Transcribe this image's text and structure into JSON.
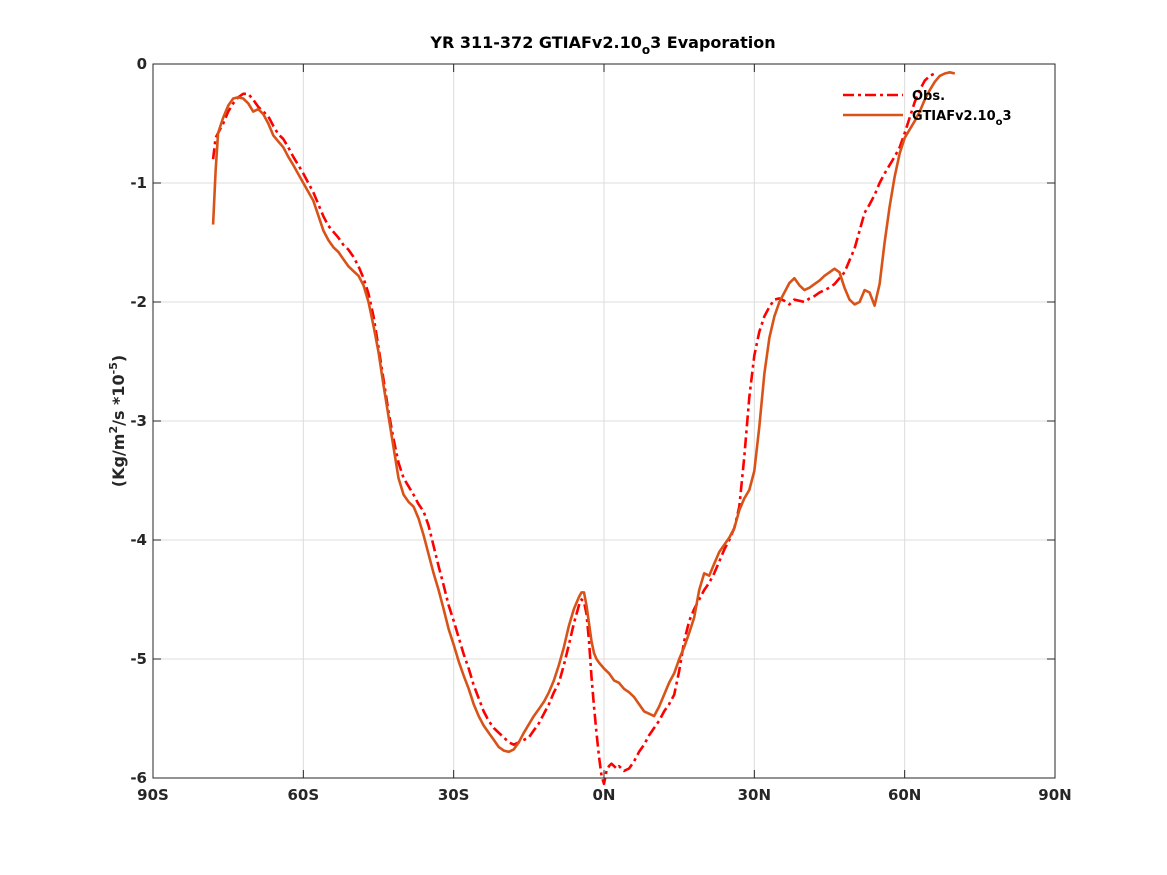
{
  "chart_data": {
    "type": "line",
    "title": {
      "main": "YR 311-372 GTIAFv2.10",
      "sub": "o",
      "tail": "3 Evaporation"
    },
    "ylabel": {
      "pre": "(Kg/m",
      "sup1": "2",
      "mid": "/s *10",
      "sup2": "-5",
      "post": ")"
    },
    "xlabel": "",
    "xlim": [
      -90,
      90
    ],
    "ylim": [
      -6,
      0
    ],
    "grid": true,
    "legend_position": "top-right",
    "x_ticks": [
      {
        "value": -90,
        "label": "90S"
      },
      {
        "value": -60,
        "label": "60S"
      },
      {
        "value": -30,
        "label": "30S"
      },
      {
        "value": 0,
        "label": "0N"
      },
      {
        "value": 30,
        "label": "30N"
      },
      {
        "value": 60,
        "label": "60N"
      },
      {
        "value": 90,
        "label": "90N"
      }
    ],
    "y_ticks": [
      {
        "value": 0,
        "label": "0"
      },
      {
        "value": -1,
        "label": "-1"
      },
      {
        "value": -2,
        "label": "-2"
      },
      {
        "value": -3,
        "label": "-3"
      },
      {
        "value": -4,
        "label": "-4"
      },
      {
        "value": -5,
        "label": "-5"
      },
      {
        "value": -6,
        "label": "-6"
      }
    ],
    "series": [
      {
        "name": "Obs.",
        "legend_parts": {
          "main": "Obs.",
          "sub": "",
          "tail": ""
        },
        "color": "#ff0000",
        "style": "dashdot",
        "points": [
          [
            -78,
            -0.8
          ],
          [
            -77.5,
            -0.62
          ],
          [
            -76,
            -0.5
          ],
          [
            -75,
            -0.4
          ],
          [
            -74,
            -0.33
          ],
          [
            -73,
            -0.28
          ],
          [
            -72,
            -0.25
          ],
          [
            -71,
            -0.25
          ],
          [
            -70,
            -0.3
          ],
          [
            -69,
            -0.36
          ],
          [
            -68,
            -0.4
          ],
          [
            -67,
            -0.44
          ],
          [
            -66,
            -0.52
          ],
          [
            -65,
            -0.59
          ],
          [
            -64,
            -0.63
          ],
          [
            -63,
            -0.7
          ],
          [
            -62,
            -0.78
          ],
          [
            -60,
            -0.92
          ],
          [
            -58,
            -1.08
          ],
          [
            -56,
            -1.28
          ],
          [
            -55,
            -1.36
          ],
          [
            -54,
            -1.41
          ],
          [
            -53,
            -1.46
          ],
          [
            -52,
            -1.52
          ],
          [
            -51,
            -1.56
          ],
          [
            -50,
            -1.62
          ],
          [
            -49,
            -1.7
          ],
          [
            -48,
            -1.8
          ],
          [
            -47,
            -1.93
          ],
          [
            -46,
            -2.12
          ],
          [
            -45,
            -2.38
          ],
          [
            -44,
            -2.65
          ],
          [
            -43,
            -2.92
          ],
          [
            -42,
            -3.15
          ],
          [
            -41,
            -3.35
          ],
          [
            -40,
            -3.48
          ],
          [
            -39,
            -3.55
          ],
          [
            -38,
            -3.62
          ],
          [
            -37,
            -3.7
          ],
          [
            -36,
            -3.76
          ],
          [
            -35,
            -3.88
          ],
          [
            -34,
            -4.05
          ],
          [
            -33,
            -4.22
          ],
          [
            -32,
            -4.38
          ],
          [
            -31,
            -4.55
          ],
          [
            -30,
            -4.68
          ],
          [
            -29,
            -4.82
          ],
          [
            -28,
            -4.96
          ],
          [
            -27,
            -5.08
          ],
          [
            -26,
            -5.22
          ],
          [
            -25,
            -5.33
          ],
          [
            -24,
            -5.44
          ],
          [
            -23,
            -5.52
          ],
          [
            -22,
            -5.58
          ],
          [
            -21,
            -5.62
          ],
          [
            -20,
            -5.66
          ],
          [
            -19,
            -5.7
          ],
          [
            -18,
            -5.72
          ],
          [
            -17,
            -5.7
          ],
          [
            -16,
            -5.68
          ],
          [
            -15,
            -5.66
          ],
          [
            -14,
            -5.6
          ],
          [
            -13,
            -5.54
          ],
          [
            -12,
            -5.46
          ],
          [
            -11,
            -5.38
          ],
          [
            -10,
            -5.28
          ],
          [
            -9,
            -5.2
          ],
          [
            -8,
            -5.05
          ],
          [
            -7,
            -4.88
          ],
          [
            -6,
            -4.7
          ],
          [
            -5,
            -4.55
          ],
          [
            -4.5,
            -4.5
          ],
          [
            -4,
            -4.52
          ],
          [
            -3.5,
            -4.62
          ],
          [
            -3,
            -4.85
          ],
          [
            -2.5,
            -5.15
          ],
          [
            -2,
            -5.4
          ],
          [
            -1.5,
            -5.62
          ],
          [
            -1,
            -5.82
          ],
          [
            -0.5,
            -5.98
          ],
          [
            0,
            -6.05
          ],
          [
            0.5,
            -5.94
          ],
          [
            1,
            -5.9
          ],
          [
            1.5,
            -5.88
          ],
          [
            2,
            -5.9
          ],
          [
            2.5,
            -5.92
          ],
          [
            3,
            -5.9
          ],
          [
            4,
            -5.94
          ],
          [
            5,
            -5.92
          ],
          [
            6,
            -5.86
          ],
          [
            7,
            -5.78
          ],
          [
            8,
            -5.72
          ],
          [
            9,
            -5.64
          ],
          [
            10,
            -5.58
          ],
          [
            11,
            -5.52
          ],
          [
            12,
            -5.44
          ],
          [
            13,
            -5.38
          ],
          [
            14,
            -5.3
          ],
          [
            15,
            -5.1
          ],
          [
            16,
            -4.85
          ],
          [
            17,
            -4.68
          ],
          [
            18,
            -4.58
          ],
          [
            19,
            -4.5
          ],
          [
            20,
            -4.42
          ],
          [
            21,
            -4.36
          ],
          [
            22,
            -4.28
          ],
          [
            23,
            -4.18
          ],
          [
            24,
            -4.08
          ],
          [
            25,
            -4.0
          ],
          [
            26,
            -3.9
          ],
          [
            27,
            -3.72
          ],
          [
            28,
            -3.3
          ],
          [
            29,
            -2.8
          ],
          [
            30,
            -2.45
          ],
          [
            31,
            -2.25
          ],
          [
            32,
            -2.12
          ],
          [
            33,
            -2.04
          ],
          [
            34,
            -1.98
          ],
          [
            35,
            -1.97
          ],
          [
            36,
            -1.99
          ],
          [
            37,
            -2.02
          ],
          [
            38,
            -1.98
          ],
          [
            39,
            -1.99
          ],
          [
            40,
            -2.0
          ],
          [
            41,
            -1.97
          ],
          [
            42,
            -1.95
          ],
          [
            43,
            -1.92
          ],
          [
            44,
            -1.9
          ],
          [
            45,
            -1.88
          ],
          [
            46,
            -1.85
          ],
          [
            47,
            -1.8
          ],
          [
            48,
            -1.75
          ],
          [
            49,
            -1.65
          ],
          [
            50,
            -1.55
          ],
          [
            51,
            -1.4
          ],
          [
            52,
            -1.25
          ],
          [
            53,
            -1.18
          ],
          [
            54,
            -1.1
          ],
          [
            55,
            -1.0
          ],
          [
            56,
            -0.92
          ],
          [
            57,
            -0.85
          ],
          [
            58,
            -0.78
          ],
          [
            59,
            -0.7
          ],
          [
            60,
            -0.58
          ],
          [
            61,
            -0.45
          ],
          [
            62,
            -0.32
          ],
          [
            63,
            -0.22
          ],
          [
            64,
            -0.14
          ],
          [
            65,
            -0.1
          ],
          [
            66,
            -0.08
          ]
        ]
      },
      {
        "name": "GTIAFv2.10o3",
        "legend_parts": {
          "main": "GTIAFv2.10",
          "sub": "o",
          "tail": "3"
        },
        "color": "#d95319",
        "style": "solid",
        "points": [
          [
            -78,
            -1.35
          ],
          [
            -77.5,
            -0.9
          ],
          [
            -77,
            -0.58
          ],
          [
            -76,
            -0.45
          ],
          [
            -75,
            -0.35
          ],
          [
            -74,
            -0.29
          ],
          [
            -73,
            -0.28
          ],
          [
            -72,
            -0.29
          ],
          [
            -71,
            -0.33
          ],
          [
            -70,
            -0.4
          ],
          [
            -69,
            -0.38
          ],
          [
            -68,
            -0.42
          ],
          [
            -67,
            -0.5
          ],
          [
            -66,
            -0.6
          ],
          [
            -65,
            -0.65
          ],
          [
            -64,
            -0.7
          ],
          [
            -63,
            -0.78
          ],
          [
            -62,
            -0.85
          ],
          [
            -60,
            -1.0
          ],
          [
            -58,
            -1.15
          ],
          [
            -56,
            -1.4
          ],
          [
            -55,
            -1.48
          ],
          [
            -54,
            -1.54
          ],
          [
            -53,
            -1.58
          ],
          [
            -52,
            -1.64
          ],
          [
            -51,
            -1.7
          ],
          [
            -50,
            -1.74
          ],
          [
            -49,
            -1.78
          ],
          [
            -48,
            -1.86
          ],
          [
            -47,
            -2.0
          ],
          [
            -46,
            -2.2
          ],
          [
            -45,
            -2.42
          ],
          [
            -44,
            -2.7
          ],
          [
            -43,
            -2.96
          ],
          [
            -42,
            -3.22
          ],
          [
            -41,
            -3.48
          ],
          [
            -40,
            -3.62
          ],
          [
            -39,
            -3.68
          ],
          [
            -38,
            -3.72
          ],
          [
            -37,
            -3.82
          ],
          [
            -36,
            -3.96
          ],
          [
            -35,
            -4.12
          ],
          [
            -34,
            -4.28
          ],
          [
            -33,
            -4.42
          ],
          [
            -32,
            -4.58
          ],
          [
            -31,
            -4.75
          ],
          [
            -30,
            -4.88
          ],
          [
            -29,
            -5.02
          ],
          [
            -28,
            -5.14
          ],
          [
            -27,
            -5.25
          ],
          [
            -26,
            -5.38
          ],
          [
            -25,
            -5.48
          ],
          [
            -24,
            -5.56
          ],
          [
            -23,
            -5.62
          ],
          [
            -22,
            -5.68
          ],
          [
            -21,
            -5.74
          ],
          [
            -20,
            -5.77
          ],
          [
            -19,
            -5.78
          ],
          [
            -18,
            -5.76
          ],
          [
            -17,
            -5.7
          ],
          [
            -16,
            -5.62
          ],
          [
            -15,
            -5.55
          ],
          [
            -14,
            -5.48
          ],
          [
            -13,
            -5.42
          ],
          [
            -12,
            -5.36
          ],
          [
            -11,
            -5.28
          ],
          [
            -10,
            -5.18
          ],
          [
            -9,
            -5.05
          ],
          [
            -8,
            -4.9
          ],
          [
            -7,
            -4.72
          ],
          [
            -6,
            -4.58
          ],
          [
            -5,
            -4.48
          ],
          [
            -4.5,
            -4.44
          ],
          [
            -4,
            -4.44
          ],
          [
            -3.5,
            -4.55
          ],
          [
            -3,
            -4.7
          ],
          [
            -2.5,
            -4.85
          ],
          [
            -2,
            -4.95
          ],
          [
            -1.5,
            -5.0
          ],
          [
            -1,
            -5.03
          ],
          [
            0,
            -5.08
          ],
          [
            1,
            -5.12
          ],
          [
            2,
            -5.18
          ],
          [
            3,
            -5.2
          ],
          [
            4,
            -5.25
          ],
          [
            5,
            -5.28
          ],
          [
            6,
            -5.32
          ],
          [
            7,
            -5.38
          ],
          [
            8,
            -5.44
          ],
          [
            9,
            -5.46
          ],
          [
            10,
            -5.48
          ],
          [
            11,
            -5.4
          ],
          [
            12,
            -5.3
          ],
          [
            13,
            -5.2
          ],
          [
            14,
            -5.12
          ],
          [
            15,
            -5.0
          ],
          [
            16,
            -4.9
          ],
          [
            17,
            -4.78
          ],
          [
            18,
            -4.65
          ],
          [
            19,
            -4.42
          ],
          [
            20,
            -4.28
          ],
          [
            21,
            -4.3
          ],
          [
            22,
            -4.2
          ],
          [
            23,
            -4.1
          ],
          [
            24,
            -4.04
          ],
          [
            25,
            -3.98
          ],
          [
            26,
            -3.9
          ],
          [
            27,
            -3.75
          ],
          [
            28,
            -3.65
          ],
          [
            29,
            -3.58
          ],
          [
            30,
            -3.42
          ],
          [
            31,
            -3.05
          ],
          [
            32,
            -2.6
          ],
          [
            33,
            -2.3
          ],
          [
            34,
            -2.12
          ],
          [
            35,
            -2.0
          ],
          [
            36,
            -1.92
          ],
          [
            37,
            -1.84
          ],
          [
            38,
            -1.8
          ],
          [
            39,
            -1.86
          ],
          [
            40,
            -1.9
          ],
          [
            41,
            -1.88
          ],
          [
            42,
            -1.85
          ],
          [
            43,
            -1.82
          ],
          [
            44,
            -1.78
          ],
          [
            45,
            -1.75
          ],
          [
            46,
            -1.72
          ],
          [
            47,
            -1.75
          ],
          [
            48,
            -1.88
          ],
          [
            49,
            -1.98
          ],
          [
            50,
            -2.02
          ],
          [
            51,
            -2.0
          ],
          [
            52,
            -1.9
          ],
          [
            53,
            -1.92
          ],
          [
            54,
            -2.03
          ],
          [
            55,
            -1.85
          ],
          [
            56,
            -1.5
          ],
          [
            57,
            -1.2
          ],
          [
            58,
            -0.95
          ],
          [
            59,
            -0.75
          ],
          [
            60,
            -0.62
          ],
          [
            61,
            -0.55
          ],
          [
            62,
            -0.48
          ],
          [
            63,
            -0.4
          ],
          [
            64,
            -0.3
          ],
          [
            65,
            -0.22
          ],
          [
            66,
            -0.15
          ],
          [
            67,
            -0.1
          ],
          [
            68,
            -0.08
          ],
          [
            69,
            -0.07
          ],
          [
            70,
            -0.08
          ]
        ]
      }
    ]
  }
}
